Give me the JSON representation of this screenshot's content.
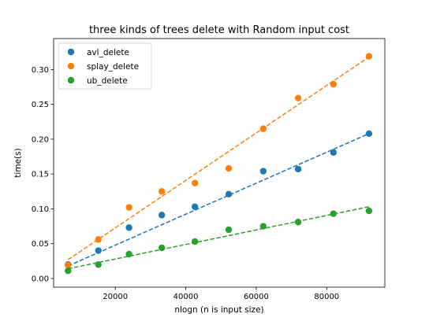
{
  "chart_data": {
    "type": "scatter",
    "title": "three kinds of trees delete with Random input cost",
    "xlabel": "nlogn (n is input size)",
    "ylabel": "time(s)",
    "xlim": [
      2500,
      96500
    ],
    "ylim": [
      -0.0125,
      0.3445
    ],
    "xticks": [
      20000,
      40000,
      60000,
      80000
    ],
    "xtick_labels": [
      "20000",
      "40000",
      "60000",
      "80000"
    ],
    "yticks": [
      0.0,
      0.05,
      0.1,
      0.15,
      0.2,
      0.25,
      0.3
    ],
    "ytick_labels": [
      "0.00",
      "0.05",
      "0.10",
      "0.15",
      "0.20",
      "0.25",
      "0.30"
    ],
    "grid": false,
    "legend_position": "top-left",
    "x": [
      6600,
      15200,
      23900,
      33200,
      42600,
      52200,
      62000,
      71900,
      81900,
      92000
    ],
    "series": [
      {
        "name": "avl_delete",
        "color": "#1f77b4",
        "values": [
          0.02,
          0.04,
          0.073,
          0.091,
          0.103,
          0.121,
          0.154,
          0.157,
          0.181,
          0.208
        ],
        "fit": [
          0.018,
          0.208
        ]
      },
      {
        "name": "splay_delete",
        "color": "#ff7f0e",
        "values": [
          0.019,
          0.056,
          0.102,
          0.125,
          0.137,
          0.158,
          0.215,
          0.259,
          0.279,
          0.319
        ],
        "fit": [
          0.027,
          0.318
        ]
      },
      {
        "name": "ub_delete",
        "color": "#2ca02c",
        "values": [
          0.011,
          0.02,
          0.035,
          0.044,
          0.053,
          0.07,
          0.075,
          0.081,
          0.093,
          0.097
        ],
        "fit": [
          0.014,
          0.103
        ]
      }
    ]
  }
}
